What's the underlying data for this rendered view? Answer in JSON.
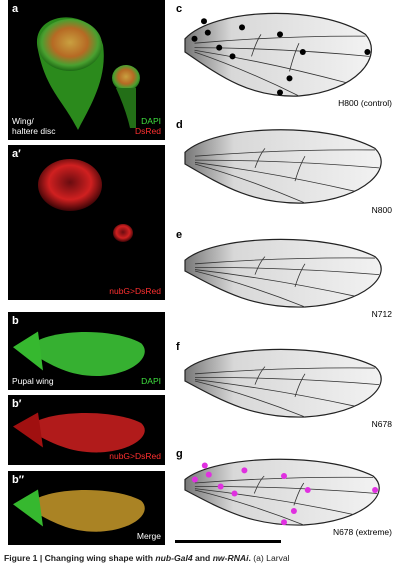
{
  "figure": {
    "left_panels": [
      {
        "letter": "a",
        "caption": [
          "Wing/",
          "haltere disc"
        ],
        "channels": [
          "DAPI",
          "DsRed"
        ]
      },
      {
        "letter": "a′",
        "channels": [
          "nubG>DsRed"
        ]
      },
      {
        "letter": "b",
        "caption": [
          "Pupal wing"
        ],
        "channels": [
          "DAPI"
        ]
      },
      {
        "letter": "b′",
        "channels": [
          "nubG>DsRed"
        ]
      },
      {
        "letter": "b″",
        "channels": [
          "Merge"
        ]
      }
    ],
    "right_panels": [
      {
        "letter": "c",
        "label": "H800 (control)"
      },
      {
        "letter": "d",
        "label": "N800"
      },
      {
        "letter": "e",
        "label": "N712"
      },
      {
        "letter": "f",
        "label": "N678"
      },
      {
        "letter": "g",
        "label": "N678 (extreme)"
      }
    ],
    "caption": {
      "lead": "Figure 1 | Changing wing shape with ",
      "gene1": "nub-Gal4",
      "and": " and ",
      "gene2": "nw-RNAi",
      "end": ". ",
      "panel": "(a)",
      "rest": " Larval"
    }
  }
}
